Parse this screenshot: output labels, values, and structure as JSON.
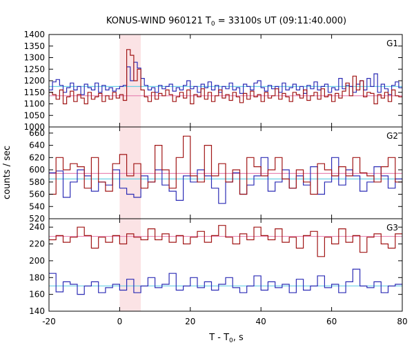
{
  "chart_data": {
    "type": "line",
    "title": "KONUS-WIND 960121 T",
    "title_sub": "0",
    "title_rest": " = 33100s UT (09:11:40.000)",
    "xlabel": "T - T",
    "xlabel_sub": "0",
    "xlabel_rest": ", s",
    "ylabel": "counts / sec",
    "xlim": [
      -20,
      80
    ],
    "x_ticks": [
      -20,
      0,
      20,
      40,
      60,
      80
    ],
    "shaded_interval": [
      0,
      6
    ],
    "colors": {
      "blue": "#2b2bb5",
      "red": "#a01414",
      "blue_bg": "#6ad0e6",
      "red_bg": "#e889b5",
      "shade": "#fbe3e5"
    },
    "panels": [
      {
        "label": "G1",
        "ylim": [
          1000,
          1400
        ],
        "y_ticks": [
          1000,
          1050,
          1100,
          1150,
          1200,
          1250,
          1300,
          1350,
          1400
        ],
        "bin_width": 1,
        "x_start": -20,
        "background": {
          "blue": 1175,
          "red": 1135
        },
        "blue_values": [
          1160,
          1195,
          1205,
          1180,
          1150,
          1170,
          1190,
          1160,
          1175,
          1140,
          1185,
          1170,
          1160,
          1190,
          1150,
          1180,
          1160,
          1170,
          1155,
          1165,
          1175,
          1180,
          1260,
          1200,
          1280,
          1255,
          1210,
          1180,
          1160,
          1170,
          1150,
          1180,
          1165,
          1175,
          1185,
          1155,
          1170,
          1160,
          1180,
          1200,
          1165,
          1175,
          1150,
          1185,
          1170,
          1195,
          1160,
          1180,
          1150,
          1175,
          1165,
          1190,
          1160,
          1170,
          1145,
          1185,
          1175,
          1160,
          1190,
          1200,
          1170,
          1155,
          1180,
          1165,
          1175,
          1150,
          1190,
          1160,
          1170,
          1185,
          1160,
          1175,
          1145,
          1180,
          1165,
          1195,
          1160,
          1175,
          1185,
          1150,
          1170,
          1160,
          1210,
          1165,
          1180,
          1175,
          1150,
          1185,
          1200,
          1160,
          1210,
          1175,
          1230,
          1150,
          1185,
          1165,
          1140,
          1180,
          1195,
          1170
        ],
        "red_values": [
          1150,
          1140,
          1120,
          1160,
          1100,
          1130,
          1155,
          1110,
          1140,
          1125,
          1100,
          1150,
          1120,
          1130,
          1145,
          1110,
          1135,
          1120,
          1150,
          1125,
          1140,
          1115,
          1335,
          1310,
          1200,
          1250,
          1160,
          1130,
          1110,
          1150,
          1120,
          1145,
          1135,
          1160,
          1140,
          1110,
          1130,
          1150,
          1125,
          1160,
          1100,
          1140,
          1130,
          1165,
          1120,
          1150,
          1110,
          1135,
          1160,
          1125,
          1140,
          1115,
          1150,
          1130,
          1105,
          1145,
          1120,
          1155,
          1130,
          1140,
          1110,
          1150,
          1125,
          1135,
          1165,
          1120,
          1145,
          1130,
          1110,
          1150,
          1140,
          1125,
          1160,
          1115,
          1135,
          1150,
          1120,
          1165,
          1130,
          1140,
          1110,
          1145,
          1125,
          1155,
          1190,
          1135,
          1220,
          1160,
          1200,
          1130,
          1150,
          1145,
          1100,
          1140,
          1125,
          1150,
          1110,
          1160,
          1135,
          1130
        ]
      },
      {
        "label": "G2",
        "ylim": [
          520,
          670
        ],
        "y_ticks": [
          520,
          540,
          560,
          580,
          600,
          620,
          640,
          660
        ],
        "bin_width": 2,
        "x_start": -20,
        "background": {
          "blue": 585,
          "red": 594
        },
        "blue_values": [
          595,
          598,
          555,
          580,
          600,
          590,
          565,
          580,
          575,
          600,
          570,
          560,
          555,
          590,
          580,
          600,
          575,
          565,
          550,
          590,
          580,
          600,
          590,
          570,
          545,
          580,
          595,
          560,
          575,
          590,
          620,
          565,
          580,
          600,
          570,
          590,
          575,
          605,
          560,
          580,
          620,
          575,
          600,
          590,
          565,
          580,
          605,
          590,
          570,
          585
        ],
        "red_values": [
          560,
          620,
          600,
          610,
          605,
          570,
          620,
          580,
          565,
          610,
          625,
          590,
          610,
          570,
          580,
          640,
          600,
          570,
          620,
          655,
          590,
          580,
          640,
          590,
          610,
          580,
          600,
          560,
          620,
          605,
          590,
          600,
          620,
          585,
          570,
          600,
          580,
          560,
          610,
          600,
          590,
          605,
          590,
          620,
          595,
          590,
          580,
          605,
          620,
          580
        ]
      },
      {
        "label": "G3",
        "ylim": [
          140,
          250
        ],
        "y_ticks": [
          140,
          160,
          180,
          200,
          220,
          240
        ],
        "bin_width": 2,
        "x_start": -20,
        "background": {
          "blue": 170,
          "red": 229
        },
        "blue_values": [
          185,
          163,
          175,
          172,
          160,
          170,
          175,
          162,
          168,
          172,
          165,
          178,
          162,
          170,
          180,
          168,
          172,
          185,
          165,
          170,
          180,
          168,
          175,
          165,
          172,
          180,
          168,
          162,
          170,
          182,
          165,
          175,
          168,
          172,
          162,
          178,
          165,
          170,
          182,
          168,
          172,
          162,
          175,
          190,
          170,
          168,
          175,
          162,
          170,
          172
        ],
        "red_values": [
          225,
          230,
          222,
          228,
          240,
          230,
          215,
          228,
          222,
          230,
          220,
          232,
          228,
          225,
          238,
          225,
          232,
          222,
          230,
          220,
          228,
          235,
          222,
          230,
          242,
          228,
          220,
          232,
          225,
          240,
          230,
          225,
          238,
          222,
          228,
          215,
          230,
          235,
          205,
          228,
          220,
          238,
          222,
          230,
          210,
          228,
          232,
          220,
          215,
          232
        ]
      }
    ]
  }
}
